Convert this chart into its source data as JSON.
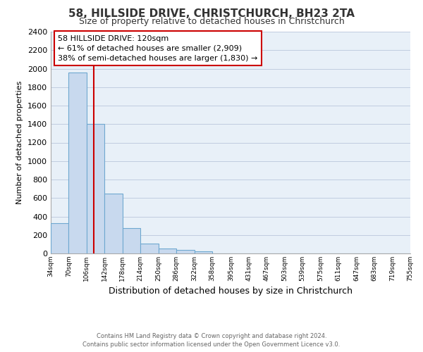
{
  "title": "58, HILLSIDE DRIVE, CHRISTCHURCH, BH23 2TA",
  "subtitle": "Size of property relative to detached houses in Christchurch",
  "xlabel": "Distribution of detached houses by size in Christchurch",
  "ylabel": "Number of detached properties",
  "bar_edges": [
    34,
    70,
    106,
    142,
    178,
    214,
    250,
    286,
    322,
    358,
    395,
    431,
    467,
    503,
    539,
    575,
    611,
    647,
    683,
    719,
    755
  ],
  "bar_heights": [
    325,
    1960,
    1400,
    645,
    275,
    105,
    50,
    35,
    20,
    0,
    0,
    0,
    0,
    0,
    0,
    0,
    0,
    0,
    0,
    0
  ],
  "bar_color": "#c8d9ee",
  "bar_edge_color": "#6fa8d0",
  "plot_bg_color": "#e8f0f8",
  "vline_x": 120,
  "vline_color": "#cc0000",
  "ylim": [
    0,
    2400
  ],
  "yticks": [
    0,
    200,
    400,
    600,
    800,
    1000,
    1200,
    1400,
    1600,
    1800,
    2000,
    2200,
    2400
  ],
  "annotation_title": "58 HILLSIDE DRIVE: 120sqm",
  "annotation_line1": "← 61% of detached houses are smaller (2,909)",
  "annotation_line2": "38% of semi-detached houses are larger (1,830) →",
  "footer_line1": "Contains HM Land Registry data © Crown copyright and database right 2024.",
  "footer_line2": "Contains public sector information licensed under the Open Government Licence v3.0.",
  "xtick_labels": [
    "34sqm",
    "70sqm",
    "106sqm",
    "142sqm",
    "178sqm",
    "214sqm",
    "250sqm",
    "286sqm",
    "322sqm",
    "358sqm",
    "395sqm",
    "431sqm",
    "467sqm",
    "503sqm",
    "539sqm",
    "575sqm",
    "611sqm",
    "647sqm",
    "683sqm",
    "719sqm",
    "755sqm"
  ],
  "background_color": "#ffffff",
  "grid_color": "#c0cce0",
  "title_fontsize": 11,
  "subtitle_fontsize": 9,
  "ylabel_fontsize": 8,
  "xlabel_fontsize": 9,
  "ytick_fontsize": 8,
  "xtick_fontsize": 6.5,
  "ann_fontsize": 8,
  "footer_fontsize": 6
}
